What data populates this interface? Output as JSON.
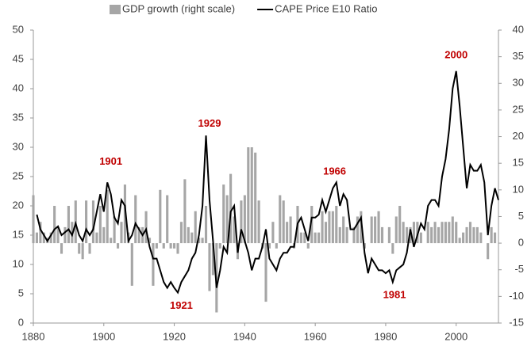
{
  "chart_data": {
    "type": "combo",
    "legend": "top",
    "xlim": [
      1880,
      2012
    ],
    "xticks": [
      1880,
      1900,
      1920,
      1940,
      1960,
      1980,
      2000
    ],
    "ylim": [
      0,
      50
    ],
    "yticks": [
      0,
      5,
      10,
      15,
      20,
      25,
      30,
      35,
      40,
      45,
      50
    ],
    "y2lim": [
      -15,
      40
    ],
    "y2ticks": [
      -15,
      -10,
      -5,
      0,
      5,
      10,
      15,
      20,
      25,
      30,
      35,
      40
    ],
    "series": [
      {
        "name": "GDP growth (right scale)",
        "type": "bar",
        "axis": "y2",
        "color": "#a6a6a6",
        "x": [
          1880,
          1881,
          1882,
          1883,
          1884,
          1885,
          1886,
          1887,
          1888,
          1889,
          1890,
          1891,
          1892,
          1893,
          1894,
          1895,
          1896,
          1897,
          1898,
          1899,
          1900,
          1901,
          1902,
          1903,
          1904,
          1905,
          1906,
          1907,
          1908,
          1909,
          1910,
          1911,
          1912,
          1913,
          1914,
          1915,
          1916,
          1917,
          1918,
          1919,
          1920,
          1921,
          1922,
          1923,
          1924,
          1925,
          1926,
          1927,
          1928,
          1929,
          1930,
          1931,
          1932,
          1933,
          1934,
          1935,
          1936,
          1937,
          1938,
          1939,
          1940,
          1941,
          1942,
          1943,
          1944,
          1945,
          1946,
          1947,
          1948,
          1949,
          1950,
          1951,
          1952,
          1953,
          1954,
          1955,
          1956,
          1957,
          1958,
          1959,
          1960,
          1961,
          1962,
          1963,
          1964,
          1965,
          1966,
          1967,
          1968,
          1969,
          1970,
          1971,
          1972,
          1973,
          1974,
          1975,
          1976,
          1977,
          1978,
          1979,
          1980,
          1981,
          1982,
          1983,
          1984,
          1985,
          1986,
          1987,
          1988,
          1989,
          1990,
          1991,
          1992,
          1993,
          1994,
          1995,
          1996,
          1997,
          1998,
          1999,
          2000,
          2001,
          2002,
          2003,
          2004,
          2005,
          2006,
          2007,
          2008,
          2009,
          2010,
          2011
        ],
        "values": [
          9,
          2,
          4,
          2,
          1,
          2,
          7,
          3,
          -2,
          3,
          7,
          4,
          8,
          -2,
          -3,
          8,
          -2,
          8,
          2,
          7,
          3,
          10,
          1,
          5,
          -1,
          4,
          11,
          2,
          -8,
          9,
          3,
          3,
          6,
          1,
          -8,
          -1,
          10,
          -1,
          9,
          -1,
          -1,
          -2,
          4,
          12,
          3,
          2,
          6,
          1,
          1,
          7,
          -9,
          -6,
          -13,
          -1,
          11,
          9,
          13,
          5,
          -3,
          8,
          9,
          18,
          18,
          17,
          8,
          -1,
          -11,
          -1,
          4,
          -1,
          9,
          8,
          4,
          5,
          -1,
          7,
          2,
          2,
          -1,
          7,
          2,
          2,
          6,
          4,
          6,
          6,
          7,
          3,
          5,
          3,
          0,
          3,
          5,
          6,
          -1,
          0,
          5,
          5,
          6,
          3,
          0,
          3,
          -2,
          5,
          7,
          4,
          3,
          3,
          4,
          4,
          2,
          0,
          4,
          3,
          4,
          3,
          4,
          4,
          4,
          5,
          4,
          1,
          2,
          3,
          4,
          3,
          3,
          2,
          0,
          -3,
          3,
          2
        ]
      },
      {
        "name": "CAPE Price E10 Ratio",
        "type": "line",
        "axis": "y",
        "color": "#000000",
        "x": [
          1881,
          1882,
          1883,
          1884,
          1885,
          1886,
          1887,
          1888,
          1889,
          1890,
          1891,
          1892,
          1893,
          1894,
          1895,
          1896,
          1897,
          1898,
          1899,
          1900,
          1901,
          1902,
          1903,
          1904,
          1905,
          1906,
          1907,
          1908,
          1909,
          1910,
          1911,
          1912,
          1913,
          1914,
          1915,
          1916,
          1917,
          1918,
          1919,
          1920,
          1921,
          1922,
          1923,
          1924,
          1925,
          1926,
          1927,
          1928,
          1929,
          1930,
          1931,
          1932,
          1933,
          1934,
          1935,
          1936,
          1937,
          1938,
          1939,
          1940,
          1941,
          1942,
          1943,
          1944,
          1945,
          1946,
          1947,
          1948,
          1949,
          1950,
          1951,
          1952,
          1953,
          1954,
          1955,
          1956,
          1957,
          1958,
          1959,
          1960,
          1961,
          1962,
          1963,
          1964,
          1965,
          1966,
          1967,
          1968,
          1969,
          1970,
          1971,
          1972,
          1973,
          1974,
          1975,
          1976,
          1977,
          1978,
          1979,
          1980,
          1981,
          1982,
          1983,
          1984,
          1985,
          1986,
          1987,
          1988,
          1989,
          1990,
          1991,
          1992,
          1993,
          1994,
          1995,
          1996,
          1997,
          1998,
          1999,
          2000,
          2001,
          2002,
          2003,
          2004,
          2005,
          2006,
          2007,
          2008,
          2009,
          2010,
          2011,
          2012
        ],
        "values": [
          18.5,
          16,
          15,
          14,
          15,
          16,
          16.5,
          15,
          15.5,
          16,
          15,
          17,
          15,
          14,
          16,
          15,
          16,
          19,
          22,
          19,
          24,
          22,
          18,
          17,
          21,
          20,
          14,
          15,
          17,
          16,
          15,
          16,
          13,
          11,
          11,
          9,
          7,
          6,
          7,
          6,
          5.2,
          7,
          8,
          9,
          11,
          12,
          15,
          20,
          32,
          21,
          14,
          6,
          9,
          13,
          12,
          19,
          20,
          12,
          16,
          14,
          12,
          9,
          11,
          11,
          13,
          16,
          11,
          10,
          9,
          11,
          12,
          12,
          13,
          13,
          17,
          18,
          16,
          14,
          18,
          18,
          18.5,
          21,
          19,
          21,
          23,
          24,
          20,
          22,
          21,
          16,
          16,
          17,
          18,
          12,
          8.5,
          11,
          10,
          9,
          9,
          8.5,
          9,
          7,
          9,
          9.5,
          10,
          12,
          16,
          13,
          15,
          17,
          16,
          20,
          21,
          21,
          20,
          25,
          28,
          33,
          40,
          43,
          37,
          30,
          23,
          27,
          26,
          26,
          27,
          24,
          15,
          20,
          23,
          21
        ]
      }
    ],
    "annotations": [
      {
        "text": "1901",
        "x": 1902,
        "y": 27.5
      },
      {
        "text": "1929",
        "x": 1930,
        "y": 34
      },
      {
        "text": "1921",
        "x": 1922,
        "y": 2.9
      },
      {
        "text": "1966",
        "x": 1965.5,
        "y": 25.8
      },
      {
        "text": "1981",
        "x": 1982.5,
        "y": 4.7
      },
      {
        "text": "2000",
        "x": 2000,
        "y": 45.7
      }
    ]
  }
}
